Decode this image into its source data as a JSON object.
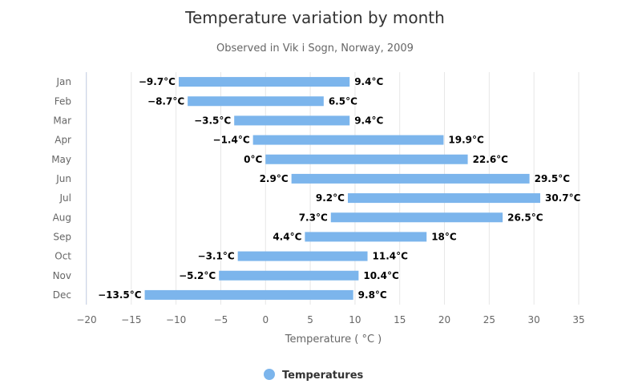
{
  "chart_data": {
    "type": "bar",
    "orientation": "horizontal",
    "range": true,
    "title": "Temperature variation by month",
    "subtitle": "Observed in Vik i Sogn, Norway, 2009",
    "categories": [
      "Jan",
      "Feb",
      "Mar",
      "Apr",
      "May",
      "Jun",
      "Jul",
      "Aug",
      "Sep",
      "Oct",
      "Nov",
      "Dec"
    ],
    "series": [
      {
        "name": "Temperatures",
        "color": "#7cb5ec",
        "low": [
          -9.7,
          -8.7,
          -3.5,
          -1.4,
          0,
          2.9,
          9.2,
          7.3,
          4.4,
          -3.1,
          -5.2,
          -13.5
        ],
        "high": [
          9.4,
          6.5,
          9.4,
          19.9,
          22.6,
          29.5,
          30.7,
          26.5,
          18,
          11.4,
          10.4,
          9.8
        ]
      }
    ],
    "label_suffix": "°C",
    "xlabel": "Temperature ( °C )",
    "xlim": [
      -20,
      35
    ],
    "xticks": [
      -20,
      -15,
      -10,
      -5,
      0,
      5,
      10,
      15,
      20,
      25,
      30,
      35
    ],
    "grid": true,
    "legend_position": "bottom-center"
  }
}
